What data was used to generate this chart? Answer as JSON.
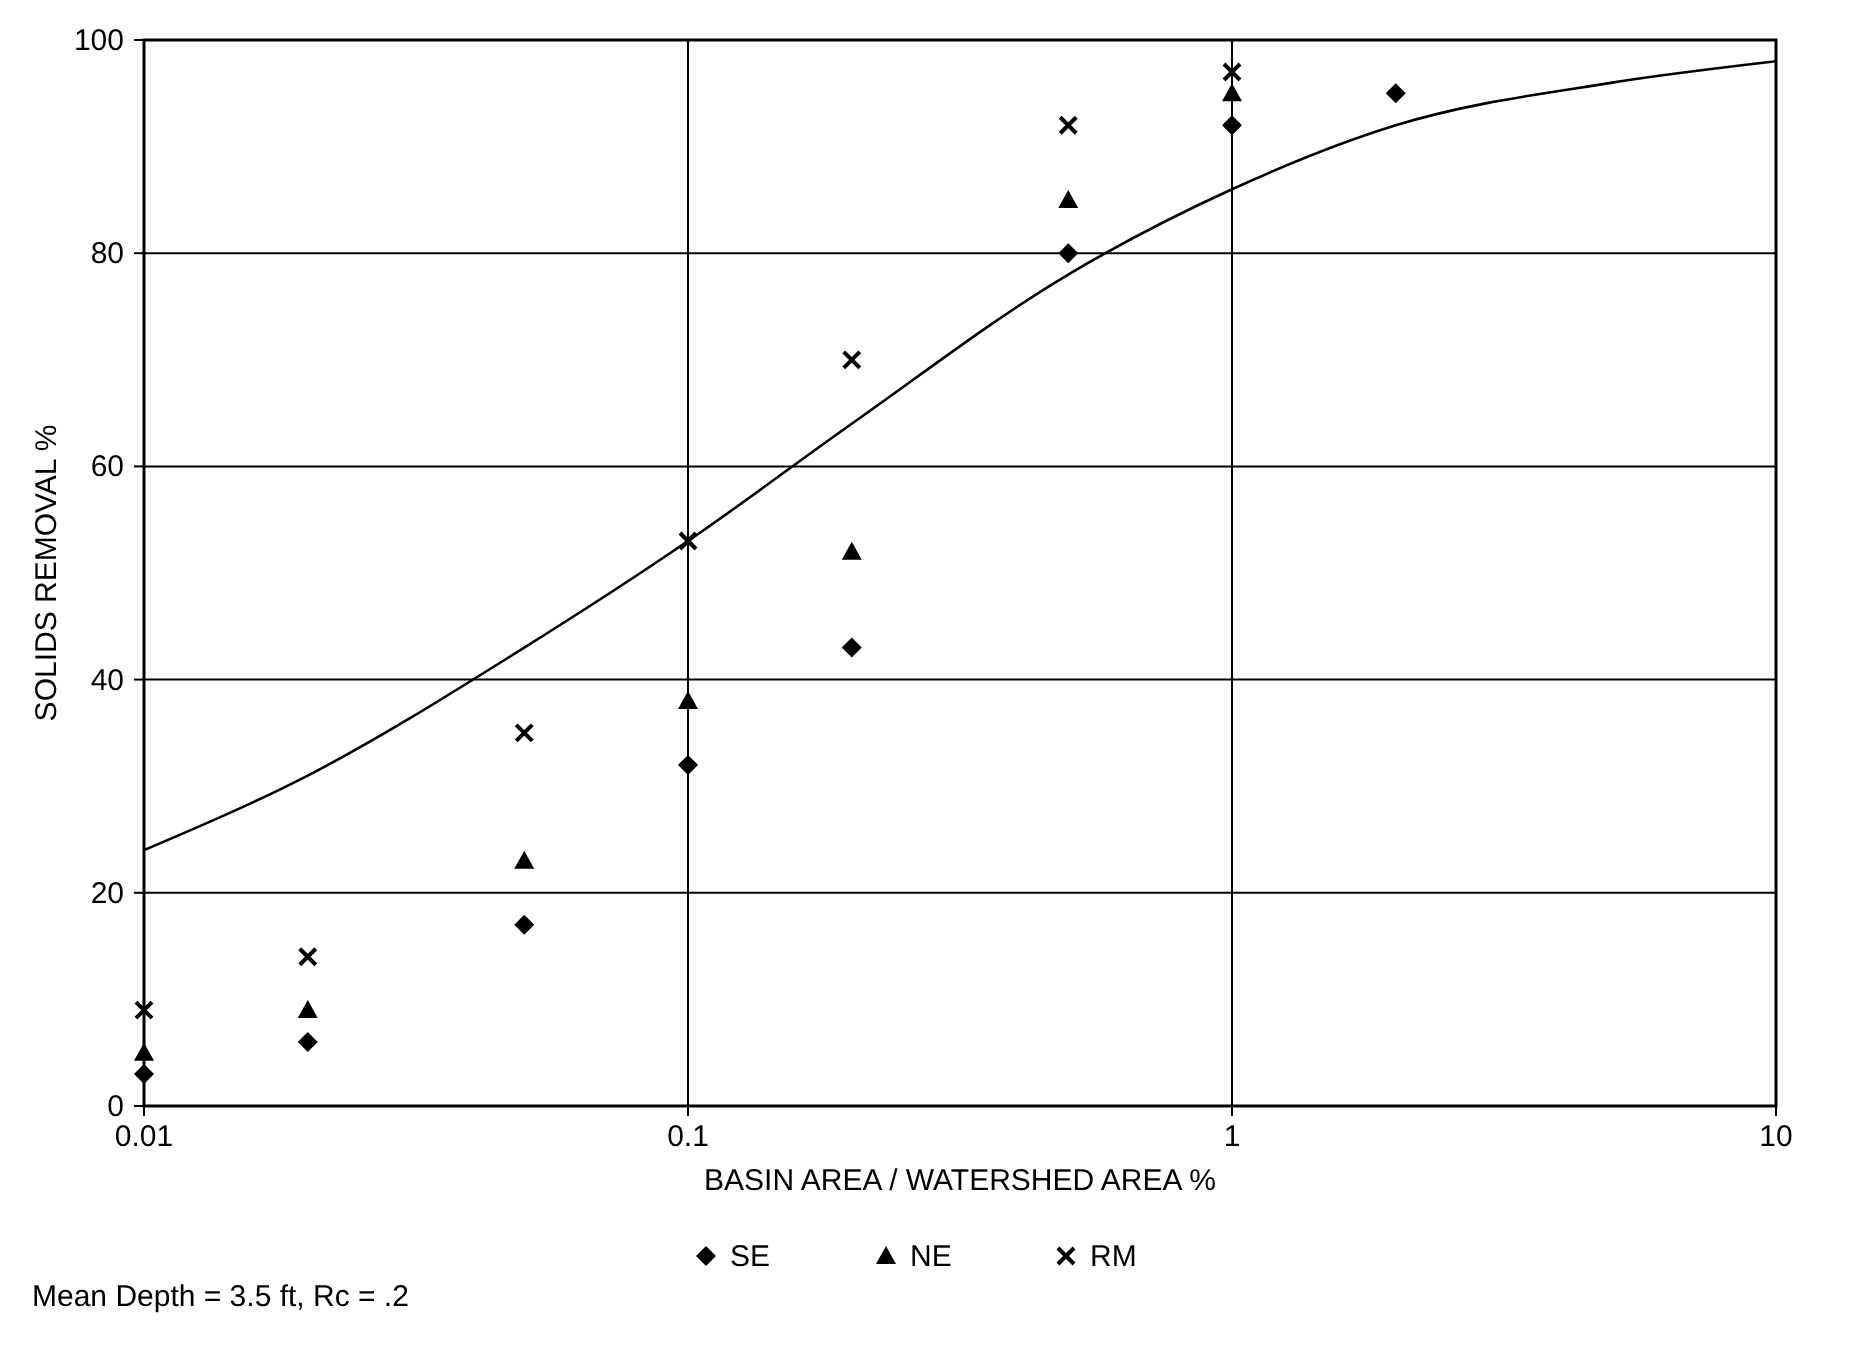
{
  "chart_data": {
    "type": "scatter",
    "xlabel": "BASIN AREA / WATERSHED AREA %",
    "ylabel": "SOLIDS REMOVAL %",
    "log": "x",
    "xlim": [
      0.01,
      10
    ],
    "ylim": [
      0,
      100
    ],
    "xticks": [
      0.01,
      0.1,
      1,
      10
    ],
    "yticks": [
      0,
      20,
      40,
      60,
      80,
      100
    ],
    "grid": true,
    "legend": "bottom",
    "annotations": [
      "Mean Depth = 3.5 ft, Rc = .2"
    ],
    "series": [
      {
        "type": "line",
        "color": "#000000",
        "marker": "none",
        "x": [
          0.01,
          0.02,
          0.05,
          0.1,
          0.2,
          0.5,
          1,
          2,
          5,
          10
        ],
        "values": [
          24,
          31,
          43,
          53,
          64,
          78,
          86,
          92,
          96,
          98
        ]
      },
      {
        "name": "SE",
        "color": "#000000",
        "marker": "diamond",
        "x": [
          0.01,
          0.02,
          0.05,
          0.1,
          0.2,
          0.5,
          1,
          2
        ],
        "values": [
          3,
          6,
          17,
          32,
          43,
          80,
          92,
          95
        ]
      },
      {
        "name": "NE",
        "color": "#000000",
        "marker": "triangle",
        "x": [
          0.01,
          0.02,
          0.05,
          0.1,
          0.2,
          0.5,
          1
        ],
        "values": [
          5,
          9,
          23,
          38,
          52,
          85,
          95
        ]
      },
      {
        "name": "RM",
        "color": "#000000",
        "marker": "cross",
        "x": [
          0.01,
          0.02,
          0.05,
          0.1,
          0.2,
          0.5,
          1
        ],
        "values": [
          9,
          14,
          35,
          53,
          70,
          92,
          97
        ]
      }
    ]
  }
}
